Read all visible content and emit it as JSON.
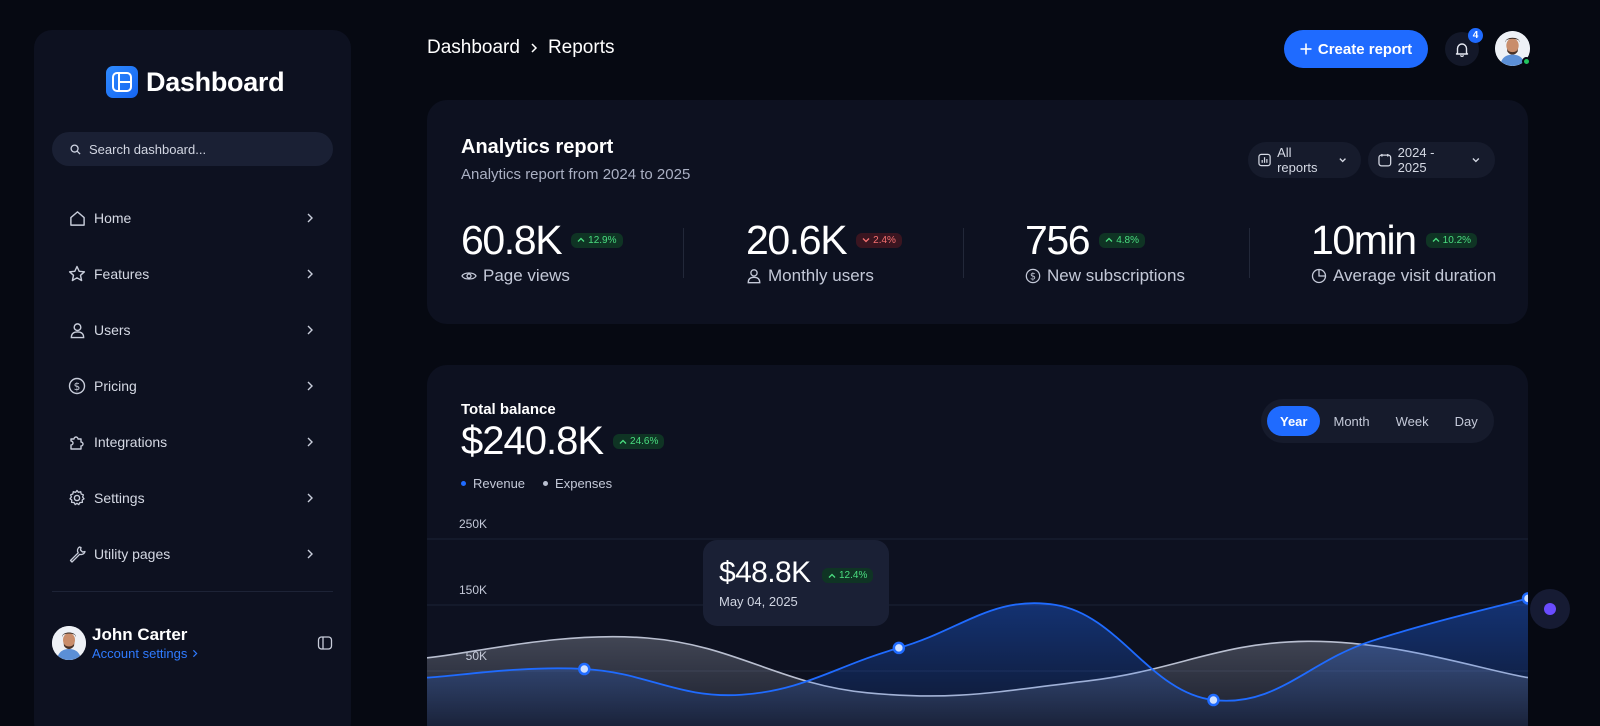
{
  "sidebar": {
    "logo_text": "Dashboard",
    "search_placeholder": "Search dashboard...",
    "items": [
      {
        "label": "Home",
        "icon": "home-icon"
      },
      {
        "label": "Features",
        "icon": "star-icon"
      },
      {
        "label": "Users",
        "icon": "user-icon"
      },
      {
        "label": "Pricing",
        "icon": "dollar-icon"
      },
      {
        "label": "Integrations",
        "icon": "puzzle-icon"
      },
      {
        "label": "Settings",
        "icon": "gear-icon"
      },
      {
        "label": "Utility pages",
        "icon": "wrench-icon"
      }
    ],
    "profile": {
      "name": "John Carter",
      "link": "Account settings"
    }
  },
  "header": {
    "breadcrumb": [
      "Dashboard",
      "Reports"
    ],
    "create_label": "Create report",
    "notifications": "4"
  },
  "analytics": {
    "title": "Analytics report",
    "subtitle": "Analytics report from 2024 to 2025",
    "filter_label": "All reports",
    "date_range": "2024 - 2025",
    "stats": [
      {
        "value": "60.8K",
        "change": "12.9%",
        "trend": "up",
        "label": "Page views",
        "icon": "eye-icon"
      },
      {
        "value": "20.6K",
        "change": "2.4%",
        "trend": "down",
        "label": "Monthly users",
        "icon": "user-icon"
      },
      {
        "value": "756",
        "change": "4.8%",
        "trend": "up",
        "label": "New subscriptions",
        "icon": "dollar-icon"
      },
      {
        "value": "10min",
        "change": "10.2%",
        "trend": "up",
        "label": "Average visit duration",
        "icon": "clock-icon"
      }
    ]
  },
  "balance": {
    "title": "Total balance",
    "value": "$240.8K",
    "change": "24.6%",
    "legend": [
      "Revenue",
      "Expenses"
    ],
    "periods": [
      "Year",
      "Month",
      "Week",
      "Day"
    ],
    "active_period": "Year",
    "tooltip": {
      "value": "$48.8K",
      "change": "12.4%",
      "date": "May 04, 2025"
    },
    "colors": {
      "revenue": "#1f6bff",
      "expenses": "#b9bfd0"
    }
  },
  "chart_data": {
    "type": "area",
    "y_ticks": [
      "250K",
      "150K",
      "50K"
    ],
    "ylim": [
      0,
      250000
    ],
    "series": [
      {
        "name": "Revenue",
        "values": [
          40000,
          53000,
          14000,
          85000,
          150000,
          6000,
          95000,
          160000
        ]
      },
      {
        "name": "Expenses",
        "values": [
          70000,
          100000,
          17000,
          35000,
          95000,
          40000
        ]
      }
    ]
  }
}
